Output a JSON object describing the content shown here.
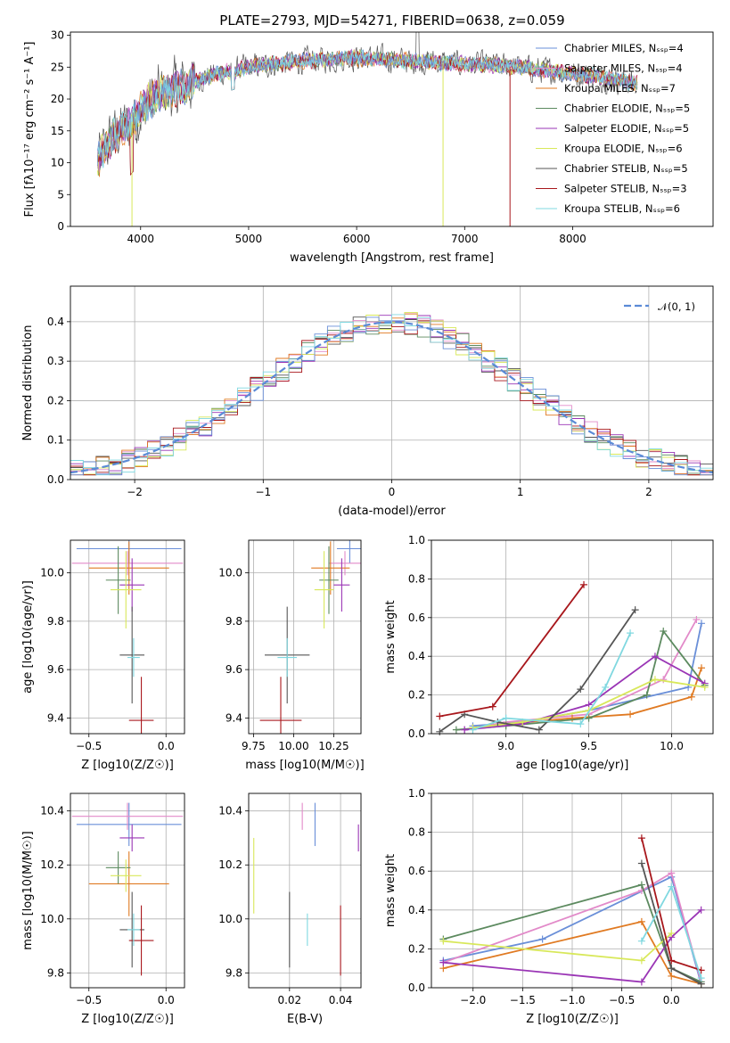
{
  "title": "PLATE=2793, MJD=54271, FIBERID=0638, z=0.059",
  "colors": [
    "#6a8fd8",
    "#e28ac9",
    "#e07a22",
    "#5c8a5f",
    "#9a35b5",
    "#d8e85a",
    "#555555",
    "#a8171c",
    "#80d8e0"
  ],
  "chart_data": [
    {
      "id": "spectrum",
      "type": "line",
      "xlabel": "wavelength [Angstrom, rest frame]",
      "ylabel": "Flux [fλ10⁻¹⁷ erg cm⁻² s⁻¹ A⁻¹]",
      "xlim": [
        3350,
        9300
      ],
      "ylim": [
        0,
        30.5
      ],
      "xticks": [
        "4000",
        "5000",
        "6000",
        "7000",
        "8000"
      ],
      "yticks": [
        "0",
        "5",
        "10",
        "15",
        "20",
        "25",
        "30"
      ],
      "grid": false,
      "legend": "top-right",
      "continuum": [
        [
          3600,
          10
        ],
        [
          3700,
          13
        ],
        [
          3800,
          15
        ],
        [
          3900,
          16
        ],
        [
          4000,
          18
        ],
        [
          4100,
          20
        ],
        [
          4200,
          21
        ],
        [
          4400,
          22
        ],
        [
          4600,
          23.5
        ],
        [
          5000,
          25
        ],
        [
          5500,
          26
        ],
        [
          6000,
          26.5
        ],
        [
          6500,
          26
        ],
        [
          7000,
          25.5
        ],
        [
          7500,
          25
        ],
        [
          8000,
          24
        ],
        [
          8400,
          23
        ],
        [
          8600,
          22.5
        ]
      ],
      "legend_entries": [
        "Chabrier MILES, N_SSP=4",
        "Salpeter MILES, N_SSP=4",
        "Kroupa MILES, N_SSP=7",
        "Chabrier ELODIE, N_SSP=5",
        "Salpeter ELODIE, N_SSP=5",
        "Kroupa ELODIE, N_SSP=6",
        "Chabrier STELIB, N_SSP=5",
        "Salpeter STELIB, N_SSP=3",
        "Kroupa STELIB, N_SSP=6"
      ]
    },
    {
      "id": "residuals",
      "type": "line",
      "xlabel": "(data-model)/error",
      "ylabel": "Normed distribution",
      "xlim": [
        -2.5,
        2.5
      ],
      "ylim": [
        0,
        0.49
      ],
      "xticks": [
        "−2",
        "−1",
        "0",
        "1",
        "2"
      ],
      "yticks": [
        "0.0",
        "0.1",
        "0.2",
        "0.3",
        "0.4"
      ],
      "grid": true,
      "legend": "top-right",
      "legend_label": "𝒩(0, 1)",
      "reference": {
        "name": "N(0,1)",
        "mean": 0,
        "sigma": 1
      }
    },
    {
      "id": "age-vs-z",
      "type": "scatter",
      "xlabel": "Z [log10(Z/Z☉)]",
      "ylabel": "age  [log10(age/yr)]",
      "xlim": [
        -0.62,
        0.12
      ],
      "ylim": [
        9.335,
        10.135
      ],
      "xticks": [
        "−0.5",
        "0.0"
      ],
      "yticks": [
        "9.4",
        "9.6",
        "9.8",
        "10.0"
      ],
      "grid": true,
      "points": [
        {
          "x": -0.24,
          "y": 10.1,
          "xerr": 0.34,
          "yerr": 0.06
        },
        {
          "x": -0.25,
          "y": 10.04,
          "xerr": 0.36,
          "yerr": 0.05
        },
        {
          "x": -0.24,
          "y": 10.02,
          "xerr": 0.26,
          "yerr": 0.11
        },
        {
          "x": -0.31,
          "y": 9.97,
          "xerr": 0.08,
          "yerr": 0.14
        },
        {
          "x": -0.22,
          "y": 9.95,
          "xerr": 0.08,
          "yerr": 0.11
        },
        {
          "x": -0.26,
          "y": 9.93,
          "xerr": 0.1,
          "yerr": 0.16
        },
        {
          "x": -0.22,
          "y": 9.66,
          "xerr": 0.08,
          "yerr": 0.2
        },
        {
          "x": -0.16,
          "y": 9.39,
          "xerr": 0.08,
          "yerr": 0.18
        },
        {
          "x": -0.21,
          "y": 9.65,
          "xerr": 0.04,
          "yerr": 0.08
        }
      ]
    },
    {
      "id": "age-vs-mass",
      "type": "scatter",
      "xlabel": "mass [log10(M/M☉)]",
      "ylabel": "",
      "xlim": [
        9.72,
        10.42
      ],
      "ylim": [
        9.335,
        10.135
      ],
      "xticks": [
        "9.75",
        "10.00",
        "10.25"
      ],
      "yticks": [
        "9.4",
        "9.6",
        "9.8",
        "10.0"
      ],
      "grid": true,
      "points": [
        {
          "x": 10.35,
          "y": 10.1,
          "xerr": 0.08,
          "yerr": 0.06
        },
        {
          "x": 10.32,
          "y": 10.04,
          "xerr": 0.1,
          "yerr": 0.05
        },
        {
          "x": 10.23,
          "y": 10.02,
          "xerr": 0.12,
          "yerr": 0.11
        },
        {
          "x": 10.22,
          "y": 9.97,
          "xerr": 0.06,
          "yerr": 0.14
        },
        {
          "x": 10.3,
          "y": 9.95,
          "xerr": 0.05,
          "yerr": 0.11
        },
        {
          "x": 10.19,
          "y": 9.93,
          "xerr": 0.06,
          "yerr": 0.16
        },
        {
          "x": 9.96,
          "y": 9.66,
          "xerr": 0.14,
          "yerr": 0.2
        },
        {
          "x": 9.92,
          "y": 9.39,
          "xerr": 0.13,
          "yerr": 0.18
        },
        {
          "x": 9.96,
          "y": 9.65,
          "xerr": 0.06,
          "yerr": 0.08
        }
      ]
    },
    {
      "id": "weight-vs-age",
      "type": "line",
      "xlabel": "age  [log10(age/yr)]",
      "ylabel": "mass weight",
      "xlim": [
        8.55,
        10.25
      ],
      "ylim": [
        0,
        1
      ],
      "xticks": [
        "9.0",
        "9.5",
        "10.0"
      ],
      "yticks": [
        "0.0",
        "0.2",
        "0.4",
        "0.6",
        "0.8",
        "1.0"
      ],
      "grid": true,
      "series": [
        {
          "x": [
            8.8,
            9.1,
            9.5,
            10.1,
            10.18
          ],
          "y": [
            0.04,
            0.06,
            0.12,
            0.24,
            0.57
          ]
        },
        {
          "x": [
            8.75,
            9.0,
            9.5,
            9.95,
            10.15
          ],
          "y": [
            0.02,
            0.06,
            0.1,
            0.28,
            0.59
          ]
        },
        {
          "x": [
            8.8,
            9.0,
            9.4,
            9.75,
            10.12,
            10.18
          ],
          "y": [
            0.03,
            0.05,
            0.08,
            0.1,
            0.19,
            0.34
          ]
        },
        {
          "x": [
            8.7,
            9.0,
            9.5,
            9.85,
            9.95,
            10.2
          ],
          "y": [
            0.02,
            0.04,
            0.08,
            0.2,
            0.53,
            0.25
          ]
        },
        {
          "x": [
            8.75,
            9.1,
            9.5,
            9.9,
            10.2
          ],
          "y": [
            0.02,
            0.05,
            0.15,
            0.4,
            0.26
          ]
        },
        {
          "x": [
            8.8,
            9.1,
            9.5,
            9.9,
            10.2
          ],
          "y": [
            0.03,
            0.06,
            0.12,
            0.28,
            0.24
          ]
        },
        {
          "x": [
            8.6,
            8.75,
            8.95,
            9.2,
            9.45,
            9.78
          ],
          "y": [
            0.01,
            0.1,
            0.06,
            0.02,
            0.23,
            0.64
          ]
        },
        {
          "x": [
            8.6,
            8.92,
            9.47
          ],
          "y": [
            0.09,
            0.14,
            0.77
          ]
        },
        {
          "x": [
            8.8,
            9.0,
            9.45,
            9.6,
            9.75
          ],
          "y": [
            0.02,
            0.08,
            0.05,
            0.24,
            0.52
          ]
        }
      ]
    },
    {
      "id": "mass-vs-z",
      "type": "scatter",
      "xlabel": "Z [log10(Z/Z☉)]",
      "ylabel": "mass [log10(M/M☉)]",
      "xlim": [
        -0.62,
        0.12
      ],
      "ylim": [
        9.745,
        10.465
      ],
      "xticks": [
        "−0.5",
        "0.0"
      ],
      "yticks": [
        "9.8",
        "10.0",
        "10.2",
        "10.4"
      ],
      "grid": true,
      "points": [
        {
          "x": -0.24,
          "y": 10.35,
          "xerr": 0.34,
          "yerr": 0.08
        },
        {
          "x": -0.25,
          "y": 10.38,
          "xerr": 0.36,
          "yerr": 0.05
        },
        {
          "x": -0.24,
          "y": 10.13,
          "xerr": 0.26,
          "yerr": 0.12
        },
        {
          "x": -0.31,
          "y": 10.19,
          "xerr": 0.08,
          "yerr": 0.06
        },
        {
          "x": -0.22,
          "y": 10.3,
          "xerr": 0.08,
          "yerr": 0.05
        },
        {
          "x": -0.26,
          "y": 10.16,
          "xerr": 0.1,
          "yerr": 0.06
        },
        {
          "x": -0.22,
          "y": 9.96,
          "xerr": 0.08,
          "yerr": 0.14
        },
        {
          "x": -0.16,
          "y": 9.92,
          "xerr": 0.08,
          "yerr": 0.13
        },
        {
          "x": -0.21,
          "y": 9.96,
          "xerr": 0.04,
          "yerr": 0.06
        }
      ]
    },
    {
      "id": "mass-vs-ebv",
      "type": "scatter",
      "xlabel": "E(B-V)",
      "ylabel": "",
      "xlim": [
        0.004,
        0.048
      ],
      "ylim": [
        9.745,
        10.465
      ],
      "xticks": [
        "0.02",
        "0.04"
      ],
      "yticks": [
        "9.8",
        "10.0",
        "10.2",
        "10.4"
      ],
      "grid": true,
      "points": [
        {
          "x": 0.03,
          "y": 10.35,
          "xerr": 0,
          "yerr": 0.08
        },
        {
          "x": 0.025,
          "y": 10.38,
          "xerr": 0,
          "yerr": 0.05
        },
        {
          "x": 0.047,
          "y": 10.3,
          "xerr": 0,
          "yerr": 0.05
        },
        {
          "x": 0.006,
          "y": 10.16,
          "xerr": 0,
          "yerr": 0.14
        },
        {
          "x": 0.02,
          "y": 9.96,
          "xerr": 0,
          "yerr": 0.14
        },
        {
          "x": 0.04,
          "y": 9.92,
          "xerr": 0,
          "yerr": 0.13
        },
        {
          "x": 0.027,
          "y": 9.96,
          "xerr": 0,
          "yerr": 0.06
        }
      ]
    },
    {
      "id": "weight-vs-z",
      "type": "line",
      "xlabel": "Z [log10(Z/Z☉)]",
      "ylabel": "mass weight",
      "xlim": [
        -2.42,
        0.42
      ],
      "ylim": [
        0,
        1
      ],
      "xticks": [
        "−2.0",
        "−1.5",
        "−1.0",
        "−0.5",
        "0.0"
      ],
      "yticks": [
        "0.0",
        "0.2",
        "0.4",
        "0.6",
        "0.8",
        "1.0"
      ],
      "grid": true,
      "series": [
        {
          "x": [
            -2.3,
            -1.3,
            0.0,
            0.3
          ],
          "y": [
            0.14,
            0.25,
            0.57,
            0.02
          ]
        },
        {
          "x": [
            -2.3,
            -0.3,
            0.0,
            0.3
          ],
          "y": [
            0.13,
            0.5,
            0.59,
            0.03
          ]
        },
        {
          "x": [
            -2.3,
            -0.3,
            0.0,
            0.3
          ],
          "y": [
            0.1,
            0.34,
            0.06,
            0.02
          ]
        },
        {
          "x": [
            -2.3,
            -0.3,
            0.0,
            0.3
          ],
          "y": [
            0.25,
            0.53,
            0.1,
            0.03
          ]
        },
        {
          "x": [
            -2.3,
            -0.3,
            0.0,
            0.3
          ],
          "y": [
            0.13,
            0.03,
            0.26,
            0.4
          ]
        },
        {
          "x": [
            -2.3,
            -0.3,
            0.0
          ],
          "y": [
            0.24,
            0.14,
            0.28
          ]
        },
        {
          "x": [
            -0.3,
            0.0,
            0.3
          ],
          "y": [
            0.64,
            0.1,
            0.02
          ]
        },
        {
          "x": [
            -0.3,
            0.0,
            0.3
          ],
          "y": [
            0.77,
            0.14,
            0.09
          ]
        },
        {
          "x": [
            -0.3,
            0.0,
            0.3
          ],
          "y": [
            0.24,
            0.52,
            0.05
          ]
        }
      ]
    }
  ]
}
